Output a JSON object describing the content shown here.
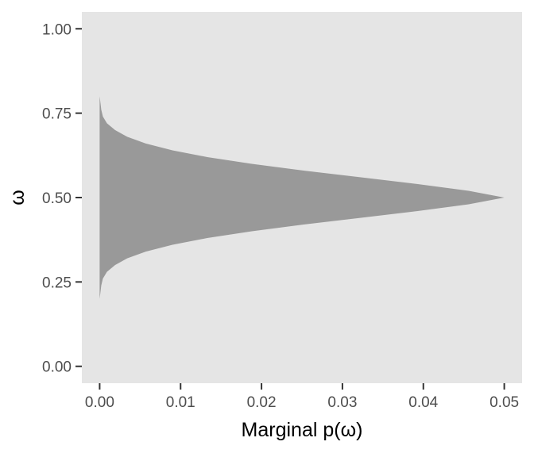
{
  "chart_data": {
    "type": "area",
    "orientation": "horizontal-density",
    "xlabel": "Marginal p(ω)",
    "ylabel": "ω",
    "xlim": [
      -0.0022,
      0.0522
    ],
    "ylim": [
      -0.05,
      1.05
    ],
    "x_ticks": [
      {
        "value": 0.0,
        "label": "0.00"
      },
      {
        "value": 0.01,
        "label": "0.01"
      },
      {
        "value": 0.02,
        "label": "0.02"
      },
      {
        "value": 0.03,
        "label": "0.03"
      },
      {
        "value": 0.04,
        "label": "0.04"
      },
      {
        "value": 0.05,
        "label": "0.05"
      }
    ],
    "y_ticks": [
      {
        "value": 0.0,
        "label": "0.00"
      },
      {
        "value": 0.25,
        "label": "0.25"
      },
      {
        "value": 0.5,
        "label": "0.50"
      },
      {
        "value": 0.75,
        "label": "0.75"
      },
      {
        "value": 1.0,
        "label": "1.00"
      }
    ],
    "series": [
      {
        "y": [
          0.18,
          0.2,
          0.22,
          0.24,
          0.26,
          0.28,
          0.3,
          0.32,
          0.34,
          0.36,
          0.38,
          0.4,
          0.42,
          0.44,
          0.46,
          0.48,
          0.5,
          0.52,
          0.54,
          0.56,
          0.58,
          0.6,
          0.62,
          0.64,
          0.66,
          0.68,
          0.7,
          0.72,
          0.74,
          0.76,
          0.78,
          0.8,
          0.82
        ],
        "x": [
          0.0,
          0.0,
          0.0001,
          0.0002,
          0.0004,
          0.0009,
          0.0019,
          0.0034,
          0.0057,
          0.009,
          0.0133,
          0.0188,
          0.0252,
          0.0323,
          0.0393,
          0.0456,
          0.05,
          0.0456,
          0.0393,
          0.0323,
          0.0252,
          0.0188,
          0.0133,
          0.009,
          0.0057,
          0.0034,
          0.0019,
          0.0009,
          0.0004,
          0.0002,
          0.0001,
          0.0,
          0.0
        ]
      }
    ],
    "grid": false,
    "colors": {
      "panel_background": "#e5e5e5",
      "area_fill": "#999999",
      "axis_tick": "#333333",
      "tick_label": "#4d4d4d",
      "axis_title": "#000000"
    }
  }
}
